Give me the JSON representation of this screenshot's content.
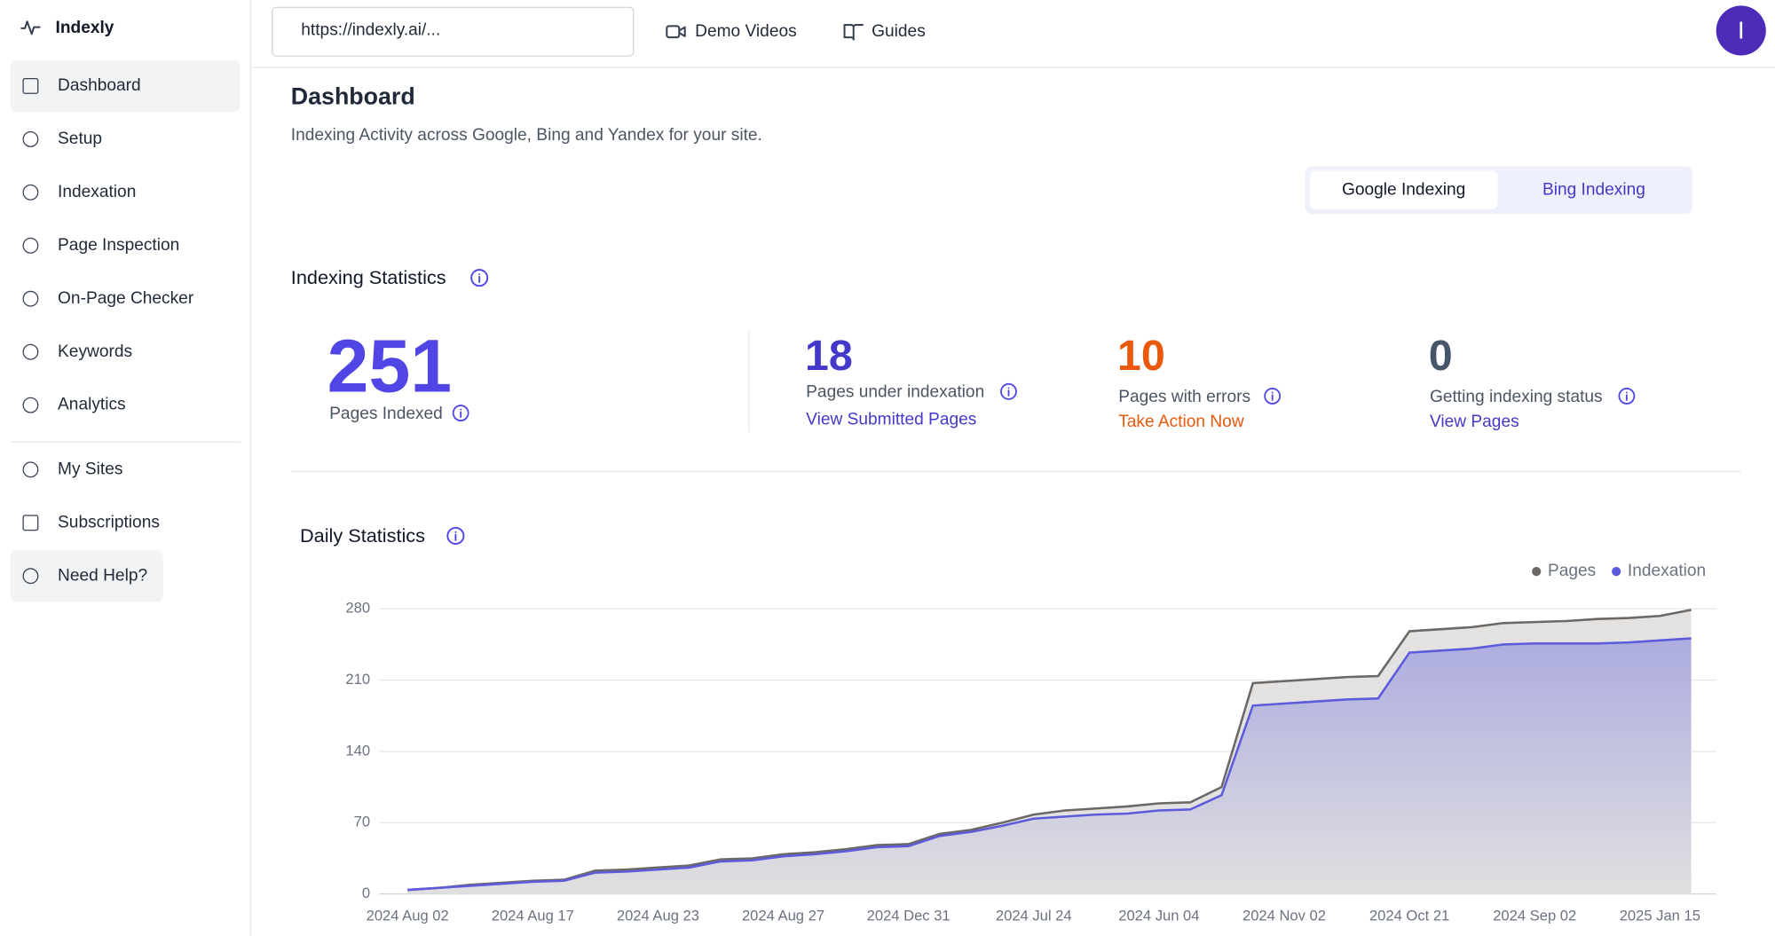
{
  "sidebar": {
    "brand": "Indexly",
    "nav": [
      "Dashboard",
      "Setup",
      "Indexation",
      "Page Inspection",
      "On-Page Checker",
      "Keywords",
      "Analytics"
    ],
    "nav2": [
      "My Sites",
      "Subscriptions",
      "Need Help?"
    ]
  },
  "header": {
    "url": "https://indexly.ai/...",
    "links": [
      "Demo Videos",
      "Guides"
    ],
    "avatar": "I"
  },
  "page": {
    "title": "Dashboard",
    "subtitle": "Indexing Activity across Google, Bing and Yandex for your site.",
    "tabs": [
      "Google Indexing",
      "Bing Indexing"
    ]
  },
  "indexing_statistics": {
    "title": "Indexing Statistics",
    "stats": [
      {
        "value": "251",
        "label": "Pages Indexed"
      },
      {
        "value": "18",
        "label": "Pages under indexation",
        "link": "View Submitted Pages"
      },
      {
        "value": "10",
        "label": "Pages with errors",
        "link": "Take Action Now"
      },
      {
        "value": "0",
        "label": "Getting indexing status",
        "link": "View Pages"
      }
    ]
  },
  "chart_data": {
    "type": "area",
    "title": "Daily Statistics",
    "legend": "top-right",
    "grid": true,
    "categories": [
      "2024 Aug 02",
      null,
      null,
      null,
      "2024 Aug 17",
      null,
      null,
      null,
      "2024 Aug 23",
      null,
      null,
      null,
      "2024 Aug 27",
      null,
      null,
      null,
      "2024 Dec 31",
      null,
      null,
      null,
      "2024 Jul 24",
      null,
      null,
      null,
      "2024 Jun 04",
      null,
      null,
      null,
      "2024 Nov 02",
      null,
      null,
      null,
      "2024 Oct 21",
      null,
      null,
      null,
      "2024 Sep 02",
      null,
      null,
      null,
      "2025 Jan 15",
      null
    ],
    "series": [
      {
        "name": "Pages",
        "color": "#6b6866",
        "fill": "#e3e2e0",
        "values": [
          4,
          6,
          9,
          11,
          13,
          14,
          23,
          24,
          26,
          28,
          34,
          35,
          39,
          41,
          44,
          48,
          49,
          59,
          63,
          70,
          78,
          82,
          84,
          86,
          89,
          90,
          105,
          207,
          209,
          211,
          213,
          214,
          258,
          260,
          262,
          266,
          267,
          268,
          270,
          271,
          273,
          279
        ]
      },
      {
        "name": "Indexation",
        "color": "#5b5bdc",
        "fill": "#8f8fe0",
        "values": [
          4,
          6,
          8,
          10,
          12,
          13,
          21,
          22,
          24,
          26,
          32,
          33,
          37,
          39,
          42,
          46,
          47,
          57,
          61,
          67,
          74,
          76,
          78,
          79,
          82,
          83,
          97,
          185,
          187,
          189,
          191,
          192,
          237,
          239,
          241,
          245,
          246,
          246,
          246,
          247,
          249,
          251
        ]
      }
    ],
    "ylim": [
      0,
      280
    ],
    "yticks": [
      0,
      70,
      140,
      210,
      280
    ]
  }
}
